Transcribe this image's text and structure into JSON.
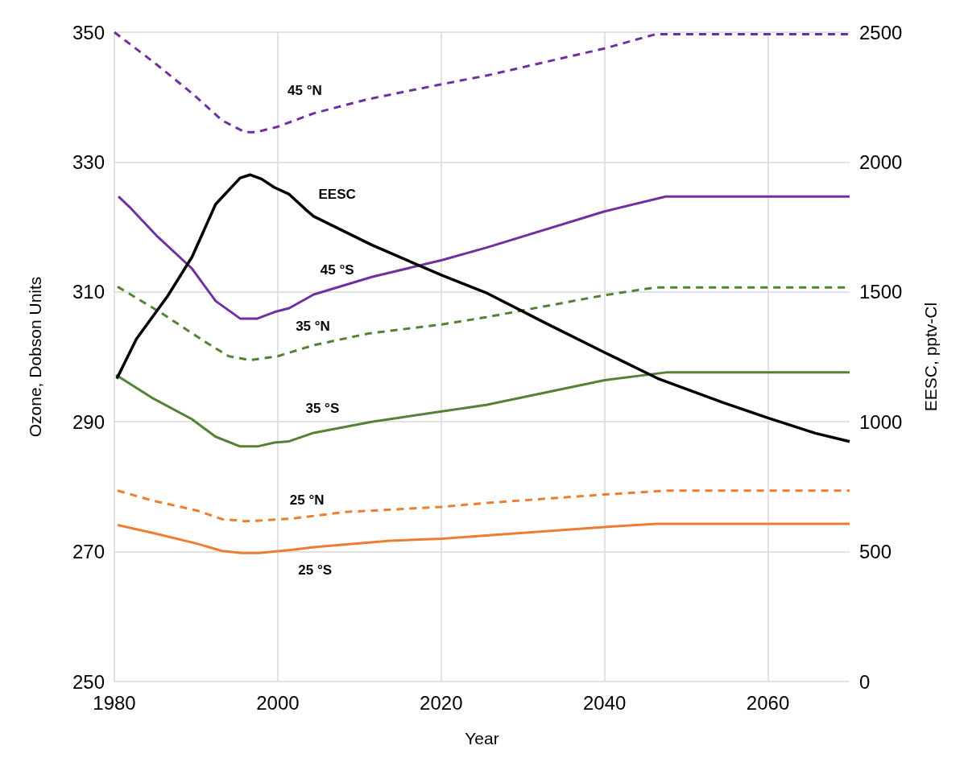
{
  "chart_data": {
    "type": "line",
    "xlabel": "Year",
    "ylabel": "Ozone, Dobson Units",
    "y2label": "EESC, pptv-Cl",
    "xlim": [
      1980,
      2070
    ],
    "xticks": [
      1980,
      2000,
      2020,
      2040,
      2060
    ],
    "ylim": [
      250,
      350
    ],
    "yticks": [
      250,
      270,
      290,
      310,
      330,
      350
    ],
    "y2lim": [
      0,
      2500
    ],
    "y2ticks": [
      0,
      500,
      1000,
      1500,
      2000,
      2500
    ],
    "grid": true,
    "series": [
      {
        "name": "45 °N",
        "color": "#7030a0",
        "line_style": "dashed",
        "x": [
          1980,
          1985,
          1989.5,
          1993.2,
          1996,
          1997.3,
          1999.9,
          2004.4,
          2011.1,
          2020.1,
          2025.5,
          2040,
          2046.3,
          2070
        ],
        "values": [
          350,
          345.2,
          340.6,
          336.4,
          334.6,
          334.6,
          335.4,
          337.5,
          339.7,
          342,
          343.3,
          347.5,
          349.7,
          349.7
        ]
      },
      {
        "name": "45 °S",
        "color": "#7030a0",
        "line_style": "solid",
        "x": [
          1980.5,
          1982,
          1985.3,
          1989.5,
          1992.4,
          1995.4,
          1997.5,
          1999.6,
          2001.4,
          2004.4,
          2011.5,
          2020.1,
          2025.5,
          2040,
          2047.5,
          2070
        ],
        "values": [
          324.7,
          322.9,
          318.5,
          313.6,
          308.6,
          305.9,
          305.9,
          306.9,
          307.5,
          309.6,
          312.3,
          314.9,
          316.8,
          322.4,
          324.7,
          324.7
        ]
      },
      {
        "name": "35 °N",
        "color": "#548235",
        "line_style": "dashed",
        "x": [
          1980.4,
          1985.7,
          1991,
          1994,
          1996.6,
          2000,
          2004.4,
          2011.1,
          2020.1,
          2025.5,
          2040,
          2046.3,
          2070
        ],
        "values": [
          310.8,
          306.8,
          302.4,
          300.1,
          299.5,
          300.1,
          301.8,
          303.6,
          305,
          306.1,
          309.5,
          310.7,
          310.7
        ]
      },
      {
        "name": "35 °S",
        "color": "#548235",
        "line_style": "solid",
        "x": [
          1980.2,
          1984.6,
          1989.5,
          1992.4,
          1995.4,
          1997.5,
          1999.6,
          2001.4,
          2004.4,
          2011.5,
          2020.1,
          2025.5,
          2040,
          2047.5,
          2070
        ],
        "values": [
          297.2,
          293.7,
          290.4,
          287.7,
          286.2,
          286.2,
          286.8,
          287,
          288.3,
          290,
          291.6,
          292.6,
          296.4,
          297.6,
          297.6
        ]
      },
      {
        "name": "25 °N",
        "color": "#ed7d31",
        "line_style": "dashed",
        "x": [
          1980.4,
          1984.6,
          1990.2,
          1993.2,
          1996,
          1998,
          2001.8,
          2008.2,
          2020.1,
          2025.5,
          2040,
          2047.5,
          2070
        ],
        "values": [
          279.4,
          277.9,
          276.3,
          275,
          274.7,
          274.8,
          275.1,
          276.1,
          276.9,
          277.5,
          278.8,
          279.4,
          279.4
        ]
      },
      {
        "name": "25 °S",
        "color": "#ed7d31",
        "line_style": "solid",
        "x": [
          1980.4,
          1985,
          1990.2,
          1993.2,
          1995.6,
          1997.7,
          2001.8,
          2004.4,
          2008.2,
          2013.8,
          2020.1,
          2025.5,
          2040,
          2046.3,
          2070
        ],
        "values": [
          274.1,
          272.8,
          271.2,
          270.1,
          269.8,
          269.8,
          270.3,
          270.7,
          271.1,
          271.7,
          272,
          272.5,
          273.8,
          274.3,
          274.3
        ]
      },
      {
        "name": "EESC",
        "color": "#000000",
        "line_style": "solid",
        "axis": "y2",
        "x": [
          1980.3,
          1982.7,
          1986.5,
          1989.5,
          1992.4,
          1995.4,
          1996.6,
          1998,
          1999.6,
          2001.4,
          2003.5,
          2004.4,
          2010.4,
          2011.5,
          2015.6,
          2020.1,
          2025.5,
          2032.9,
          2040,
          2046.5,
          2054.6,
          2060,
          2065.8,
          2070
        ],
        "values": [
          1166,
          1319,
          1483,
          1634,
          1838,
          1939,
          1951,
          1935,
          1902,
          1876,
          1815,
          1791,
          1698,
          1681,
          1625,
          1564,
          1497,
          1378,
          1267,
          1167,
          1073,
          1015,
          956,
          924
        ]
      }
    ]
  }
}
